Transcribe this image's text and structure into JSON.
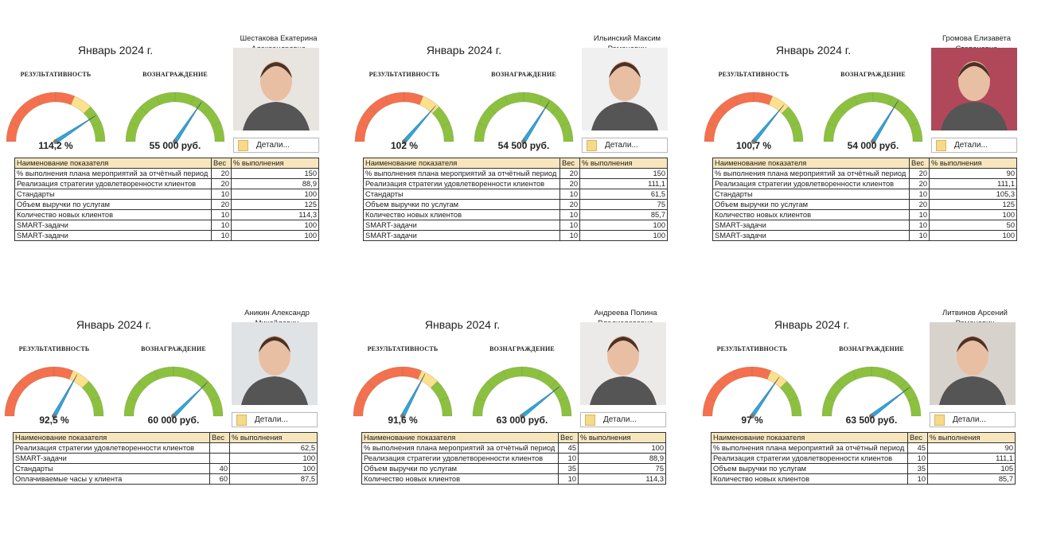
{
  "common": {
    "month": "Январь 2024 г.",
    "perf_label": "РЕЗУЛЬТАТИВНОСТЬ",
    "reward_label": "ВОЗНАГРАЖДЕНИЕ",
    "details_label": "Детали...",
    "col_name": "Наименование показателя",
    "col_weight": "Вес",
    "col_pct": "% выполнения"
  },
  "colors": {
    "red": "#f5704e",
    "yellow": "#fde08c",
    "green": "#8cc13f",
    "needle": "#29a9de",
    "header": "#f7e6bd"
  },
  "cards": [
    {
      "name": "Шестакова Екатерина Александровна",
      "perf": 114.2,
      "perf_text": "114,2 %",
      "reward": 55000,
      "reward_text": "55 000 руб.",
      "rows": [
        [
          "% выполнения плана мероприятий за отчётный период",
          "20",
          "150"
        ],
        [
          "Реализация стратегии удовлетворенности клиентов",
          "20",
          "88,9"
        ],
        [
          "Стандарты",
          "10",
          "100"
        ],
        [
          "Объем выручки по услугам",
          "20",
          "125"
        ],
        [
          "Количество новых клиентов",
          "10",
          "114,3"
        ],
        [
          "SMART-задачи",
          "10",
          "100"
        ],
        [
          "SMART-задачи",
          "10",
          "100"
        ]
      ]
    },
    {
      "name": "Ильинский Максим Романович",
      "perf": 102,
      "perf_text": "102 %",
      "reward": 54500,
      "reward_text": "54 500 руб.",
      "rows": [
        [
          "% выполнения плана мероприятий за отчётный период",
          "20",
          "150"
        ],
        [
          "Реализация стратегии удовлетворенности клиентов",
          "20",
          "111,1"
        ],
        [
          "Стандарты",
          "10",
          "61,5"
        ],
        [
          "Объем выручки по услугам",
          "20",
          "75"
        ],
        [
          "Количество новых клиентов",
          "10",
          "85,7"
        ],
        [
          "SMART-задачи",
          "10",
          "100"
        ],
        [
          "SMART-задачи",
          "10",
          "100"
        ]
      ]
    },
    {
      "name": "Громова Елизавета Степановна",
      "perf": 100.7,
      "perf_text": "100,7 %",
      "reward": 54000,
      "reward_text": "54 000 руб.",
      "rows": [
        [
          "% выполнения плана мероприятий за отчётный период",
          "20",
          "90"
        ],
        [
          "Реализация стратегии удовлетворенности клиентов",
          "20",
          "111,1"
        ],
        [
          "Стандарты",
          "10",
          "105,3"
        ],
        [
          "Объем выручки по услугам",
          "20",
          "125"
        ],
        [
          "Количество новых клиентов",
          "10",
          "100"
        ],
        [
          "SMART-задачи",
          "10",
          "50"
        ],
        [
          "SMART-задачи",
          "10",
          "100"
        ]
      ]
    },
    {
      "name": "Аникин Александр Михайлович",
      "perf": 92.5,
      "perf_text": "92,5 %",
      "reward": 60000,
      "reward_text": "60 000 руб.",
      "rows": [
        [
          "Реализация стратегии удовлетворенности клиентов",
          "",
          "62,5"
        ],
        [
          "SMART-задачи",
          "",
          "100"
        ],
        [
          "Стандарты",
          "40",
          "100"
        ],
        [
          "Оплачиваемые часы у клиента",
          "60",
          "87,5"
        ]
      ]
    },
    {
      "name": "Андреева Полина Владиславовна",
      "perf": 91.6,
      "perf_text": "91,6 %",
      "reward": 63000,
      "reward_text": "63 000 руб.",
      "rows": [
        [
          "% выполнения плана мероприятий за отчётный период",
          "45",
          "100"
        ],
        [
          "Реализация стратегии удовлетворенности клиентов",
          "10",
          "88,9"
        ],
        [
          "Объем выручки по услугам",
          "35",
          "75"
        ],
        [
          "Количество новых клиентов",
          "10",
          "114,3"
        ]
      ]
    },
    {
      "name": "Литвинов Арсений Романович",
      "perf": 97,
      "perf_text": "97 %",
      "reward": 63500,
      "reward_text": "63 500 руб.",
      "rows": [
        [
          "% выполнения плана мероприятий за отчётный период",
          "45",
          "90"
        ],
        [
          "Реализация стратегии удовлетворенности клиентов",
          "10",
          "111,1"
        ],
        [
          "Объем выручки по услугам",
          "35",
          "105"
        ],
        [
          "Количество новых клиентов",
          "10",
          "85,7"
        ]
      ]
    }
  ]
}
